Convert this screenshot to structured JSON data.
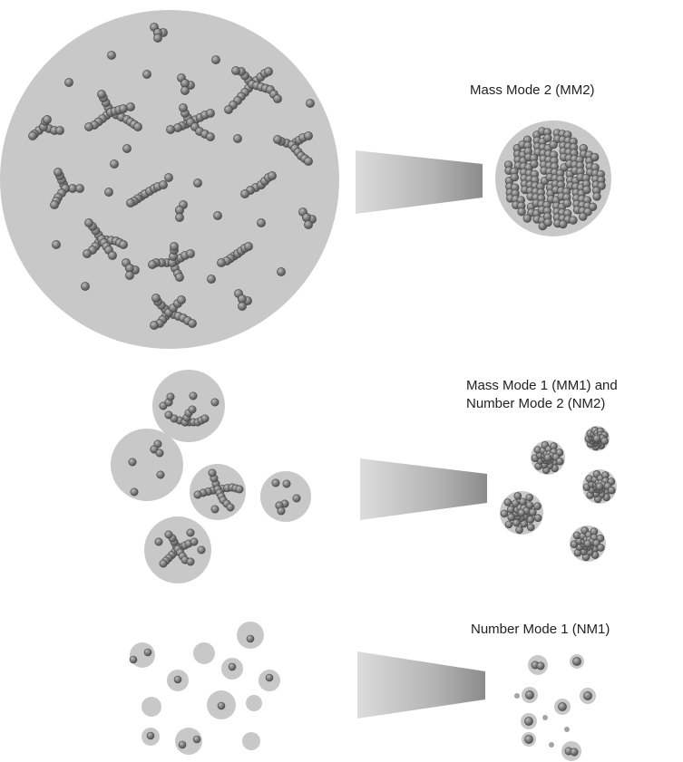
{
  "labels": {
    "mm2": "Mass Mode 2 (MM2)",
    "mm1_line1": "Mass Mode 1 (MM1) and",
    "mm1_line2": "Number Mode 2 (NM2)",
    "nm1": "Number Mode 1 (NM1)"
  },
  "colors": {
    "droplet": "#c8c8c8",
    "droplet_edge": "#a8a8a8",
    "particle": "#7e7e7e",
    "particle_dark": "#555555",
    "particle_light": "#bdbdbd",
    "text": "#222222"
  }
}
